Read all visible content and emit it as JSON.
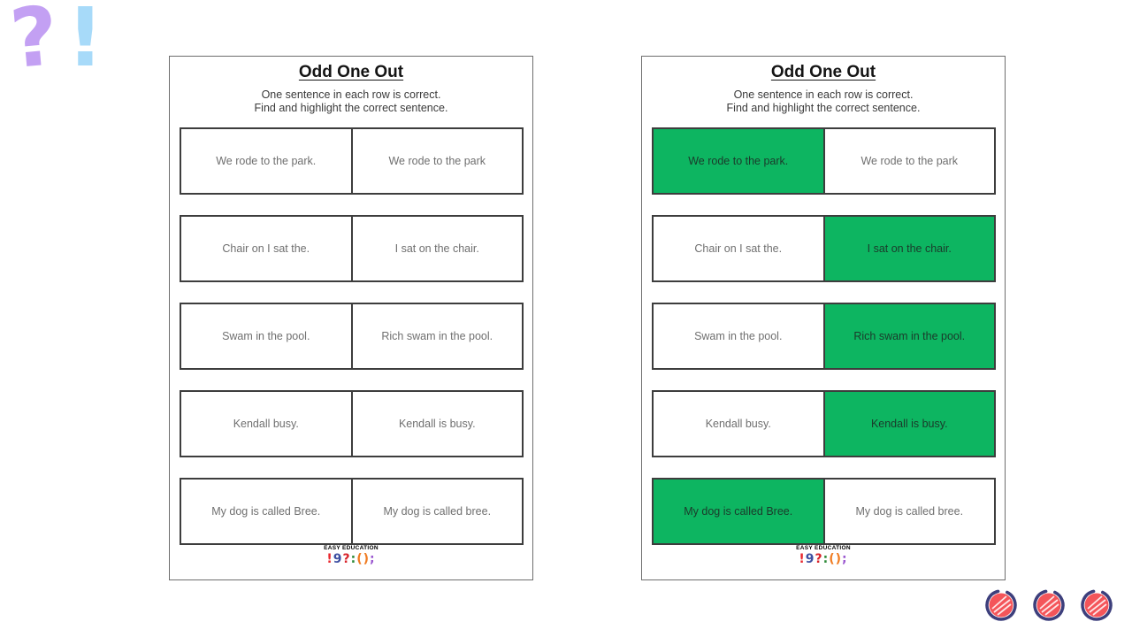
{
  "decoration": {
    "question_mark": "?",
    "exclamation_mark": "!"
  },
  "colors": {
    "highlight_green": "#0db561",
    "decoration_purple": "#c3a0f3",
    "decoration_blue": "#a7daf9",
    "circle_red": "#f4555a",
    "circle_navy": "#3d3f7c"
  },
  "worksheet": {
    "title": "Odd One Out",
    "instructions_line1": "One sentence in each row is correct.",
    "instructions_line2": "Find and highlight the correct sentence.",
    "rows": [
      {
        "left": "We rode to the park.",
        "right": "We rode to the park",
        "correct": "left"
      },
      {
        "left": "Chair on I sat the.",
        "right": "I sat on the chair.",
        "correct": "right"
      },
      {
        "left": "Swam in the pool.",
        "right": "Rich swam in the pool.",
        "correct": "right"
      },
      {
        "left": "Kendall busy.",
        "right": "Kendall is busy.",
        "correct": "right"
      },
      {
        "left": "My dog is called Bree.",
        "right": "My dog is called bree.",
        "correct": "left"
      }
    ],
    "logo": {
      "brand": "EASY EDUCATION",
      "glyphs": [
        {
          "char": "!",
          "color": "#e8262d"
        },
        {
          "char": "9",
          "color": "#3d4fa1"
        },
        {
          "char": "?",
          "color": "#d8232a"
        },
        {
          "char": ":",
          "color": "#2e8b3a"
        },
        {
          "char": "(",
          "color": "#f07c22"
        },
        {
          "char": ")",
          "color": "#f07c22"
        },
        {
          "char": ";",
          "color": "#9b59d0"
        }
      ]
    }
  },
  "pages": [
    {
      "name": "question-page",
      "answers_shown": false
    },
    {
      "name": "answer-page",
      "answers_shown": true
    }
  ],
  "footer_icons": [
    "scribble-circle",
    "scribble-circle",
    "scribble-circle"
  ]
}
